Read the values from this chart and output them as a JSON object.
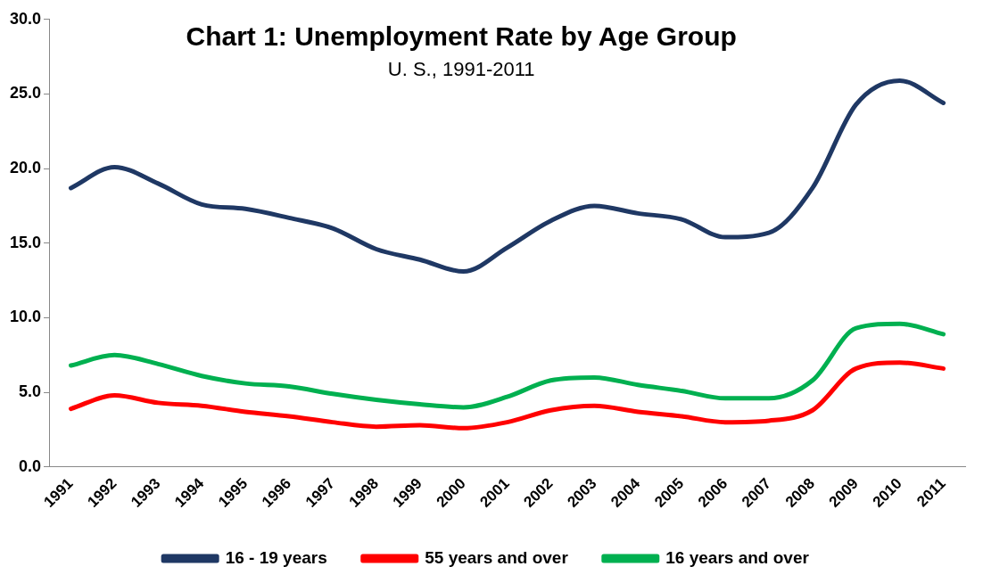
{
  "chart_data": {
    "type": "line",
    "title": "Chart 1: Unemployment Rate by Age Group",
    "subtitle": "U. S., 1991-2011",
    "categories": [
      "1991",
      "1992",
      "1993",
      "1994",
      "1995",
      "1996",
      "1997",
      "1998",
      "1999",
      "2000",
      "2001",
      "2002",
      "2003",
      "2004",
      "2005",
      "2006",
      "2007",
      "2008",
      "2009",
      "2010",
      "2011"
    ],
    "series": [
      {
        "name": "16 - 19 years",
        "color": "#1f3864",
        "values": [
          18.7,
          20.1,
          19.0,
          17.6,
          17.3,
          16.7,
          16.0,
          14.6,
          13.9,
          13.1,
          14.7,
          16.5,
          17.5,
          17.0,
          16.6,
          15.4,
          15.7,
          18.7,
          24.3,
          25.9,
          24.4
        ]
      },
      {
        "name": "55 years and over",
        "color": "#ff0000",
        "values": [
          3.9,
          4.8,
          4.3,
          4.1,
          3.7,
          3.4,
          3.0,
          2.7,
          2.8,
          2.6,
          3.0,
          3.8,
          4.1,
          3.7,
          3.4,
          3.0,
          3.1,
          3.8,
          6.6,
          7.0,
          6.6
        ]
      },
      {
        "name": "16 years and over",
        "color": "#00b050",
        "values": [
          6.8,
          7.5,
          6.9,
          6.1,
          5.6,
          5.4,
          4.9,
          4.5,
          4.2,
          4.0,
          4.7,
          5.8,
          6.0,
          5.5,
          5.1,
          4.6,
          4.6,
          5.8,
          9.3,
          9.6,
          8.9
        ]
      }
    ],
    "ylim": [
      0,
      30
    ],
    "yticks": [
      {
        "value": 0,
        "label": "0.0"
      },
      {
        "value": 5,
        "label": "5.0"
      },
      {
        "value": 10,
        "label": "10.0"
      },
      {
        "value": 15,
        "label": "15.0"
      },
      {
        "value": 20,
        "label": "20.0"
      },
      {
        "value": 25,
        "label": "25.0"
      },
      {
        "value": 30,
        "label": "30.0"
      }
    ],
    "grid": false,
    "legend": "bottom",
    "marker": "none",
    "line_style": "solid"
  }
}
